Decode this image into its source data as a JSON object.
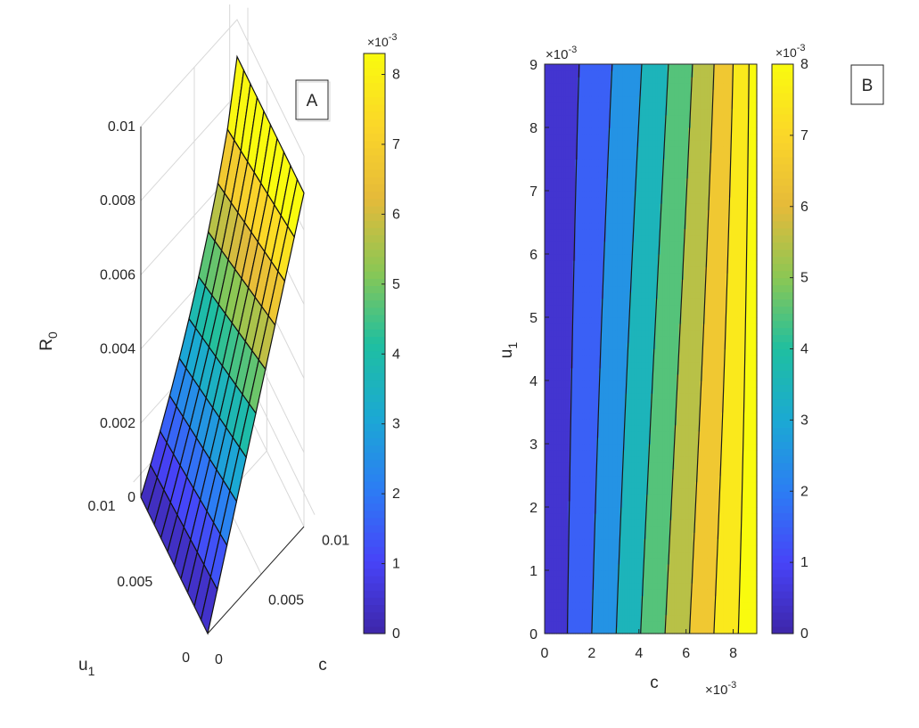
{
  "chart_data": [
    {
      "type": "surface",
      "panel_label": "A",
      "zlabel_main": "R",
      "zlabel_sub": "0",
      "xlabel": "c",
      "ylabel_main": "u",
      "ylabel_sub": "1",
      "x_ticks": [
        "0",
        "0.005",
        "0.01"
      ],
      "y_ticks": [
        "0",
        "0.005",
        "0.01"
      ],
      "z_ticks": [
        "0",
        "0.002",
        "0.004",
        "0.006",
        "0.008",
        "0.01"
      ],
      "xlim": [
        0,
        0.009
      ],
      "ylim": [
        0,
        0.009
      ],
      "zlim": [
        0,
        0.01
      ],
      "formula_note": "",
      "colorbar": {
        "min": 0,
        "max": 8.3,
        "ticks": [
          "0",
          "1",
          "2",
          "3",
          "4",
          "5",
          "6",
          "7",
          "8"
        ],
        "exponent_base": "×10",
        "exponent_power": "-3"
      },
      "colormap": [
        "#3e26a8",
        "#4743f8",
        "#2c7df4",
        "#1ba9d3",
        "#1fbfa0",
        "#8ac754",
        "#e5ba3a",
        "#fbd629",
        "#f9fb0e"
      ]
    },
    {
      "type": "filled-contour",
      "panel_label": "B",
      "xlabel": "c",
      "ylabel_main": "u",
      "ylabel_sub": "1",
      "x_ticks": [
        "0",
        "2",
        "4",
        "6",
        "8"
      ],
      "y_ticks": [
        "0",
        "1",
        "2",
        "3",
        "4",
        "5",
        "6",
        "7",
        "8",
        "9"
      ],
      "xlim": [
        0,
        9
      ],
      "ylim": [
        0,
        9
      ],
      "x_exponent_base": "×10",
      "x_exponent_power": "-3",
      "y_exponent_base": "×10",
      "y_exponent_power": "-3",
      "levels": [
        0,
        1,
        2,
        3,
        4,
        5,
        6,
        7,
        8
      ],
      "colorbar": {
        "min": 0,
        "max": 8,
        "ticks": [
          "0",
          "1",
          "2",
          "3",
          "4",
          "5",
          "6",
          "7",
          "8"
        ],
        "exponent_base": "×10",
        "exponent_power": "-3"
      }
    }
  ]
}
